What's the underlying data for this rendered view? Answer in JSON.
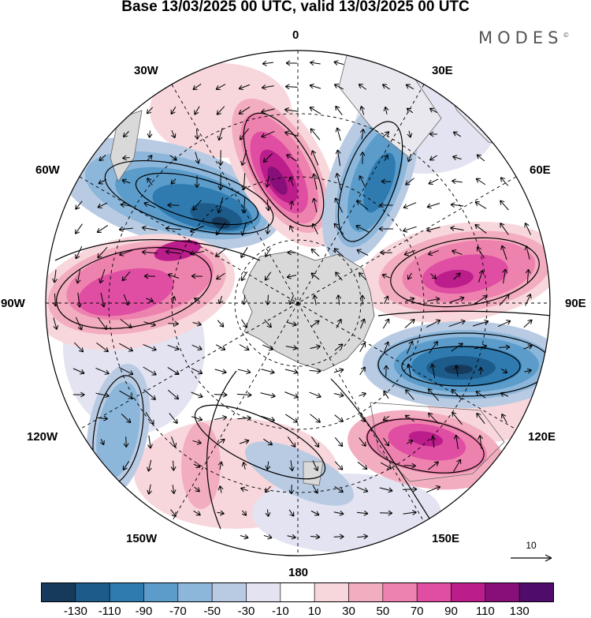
{
  "title": "Base 13/03/2025 00 UTC, valid 13/03/2025 00 UTC",
  "brand": "MODES",
  "brand_mark": "©",
  "longitude_labels": {
    "lon_0": "0",
    "lon_30e": "30E",
    "lon_60e": "60E",
    "lon_90e": "90E",
    "lon_120e": "120E",
    "lon_150e": "150E",
    "lon_180": "180",
    "lon_150w": "150W",
    "lon_120w": "120W",
    "lon_90w": "90W",
    "lon_60w": "60W",
    "lon_30w": "30W"
  },
  "reference_vector": {
    "label": "10"
  },
  "colorbar": {
    "ticks": [
      "-130",
      "-110",
      "-90",
      "-70",
      "-50",
      "-30",
      "-10",
      "10",
      "30",
      "50",
      "70",
      "90",
      "110",
      "130"
    ],
    "colors": [
      "#153a5c",
      "#1d5b8a",
      "#2f7bb0",
      "#5b9ccb",
      "#8cb6da",
      "#b9cbe3",
      "#e3e3f1",
      "#ffffff",
      "#f8d7dc",
      "#f3adc0",
      "#ee82ae",
      "#df4ea2",
      "#bb1d8b",
      "#880f79",
      "#4f0c6b"
    ]
  },
  "field_colors": {
    "land": "#d9d9d9",
    "contour": "#000000",
    "grid": "#000000"
  }
}
